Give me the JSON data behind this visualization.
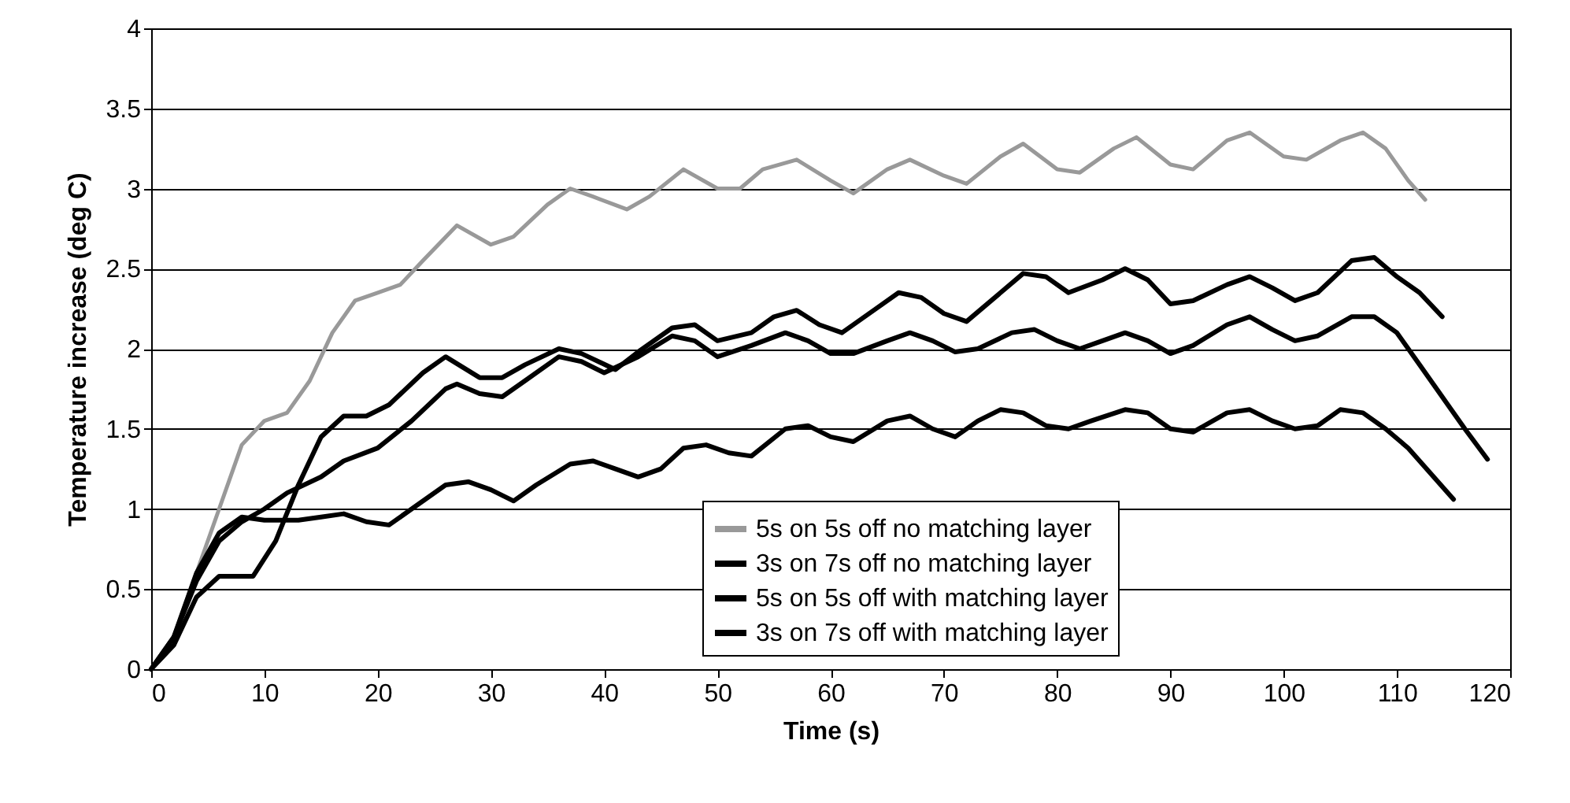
{
  "chart_data": {
    "type": "line",
    "xlabel": "Time (s)",
    "ylabel": "Temperature increase (deg C)",
    "xlim": [
      0,
      120
    ],
    "ylim": [
      0,
      4
    ],
    "xticks": [
      0,
      10,
      20,
      30,
      40,
      50,
      60,
      70,
      80,
      90,
      100,
      110,
      120
    ],
    "yticks": [
      0,
      0.5,
      1,
      1.5,
      2,
      2.5,
      3,
      3.5,
      4
    ],
    "grid": "y",
    "legend": "bottom right",
    "line_style": "solid",
    "marker": "none",
    "series": [
      {
        "name": "5s on 5s off no matching layer",
        "color": "#999999",
        "x": [
          0,
          2,
          4,
          6,
          8,
          10,
          12,
          14,
          16,
          18,
          20,
          22,
          24,
          27,
          30,
          32,
          35,
          37,
          39,
          42,
          44,
          47,
          50,
          52,
          54,
          57,
          60,
          62,
          65,
          67,
          70,
          72,
          75,
          77,
          80,
          82,
          85,
          87,
          90,
          92,
          95,
          97,
          100,
          102,
          105,
          107,
          109,
          111,
          112.5
        ],
        "values": [
          0,
          0.2,
          0.6,
          1.0,
          1.4,
          1.55,
          1.6,
          1.8,
          2.1,
          2.3,
          2.35,
          2.4,
          2.55,
          2.77,
          2.65,
          2.7,
          2.9,
          3.0,
          2.95,
          2.87,
          2.95,
          3.12,
          3.0,
          3.0,
          3.12,
          3.18,
          3.05,
          2.97,
          3.12,
          3.18,
          3.08,
          3.03,
          3.2,
          3.28,
          3.12,
          3.1,
          3.25,
          3.32,
          3.15,
          3.12,
          3.3,
          3.35,
          3.2,
          3.18,
          3.3,
          3.35,
          3.25,
          3.05,
          2.93
        ]
      },
      {
        "name": "3s on 7s off no matching layer",
        "color": "#000000",
        "x": [
          0,
          2,
          4,
          6,
          9,
          11,
          13,
          15,
          17,
          19,
          21,
          24,
          26,
          29,
          31,
          33,
          36,
          38,
          41,
          43,
          46,
          48,
          50,
          53,
          55,
          57,
          59,
          61,
          64,
          66,
          68,
          70,
          72,
          75,
          77,
          79,
          81,
          84,
          86,
          88,
          90,
          92,
          95,
          97,
          99,
          101,
          103,
          106,
          108,
          110,
          112,
          114
        ],
        "values": [
          0,
          0.15,
          0.45,
          0.58,
          0.58,
          0.8,
          1.15,
          1.45,
          1.58,
          1.58,
          1.65,
          1.85,
          1.95,
          1.82,
          1.82,
          1.9,
          2.0,
          1.97,
          1.87,
          1.98,
          2.13,
          2.15,
          2.05,
          2.1,
          2.2,
          2.24,
          2.15,
          2.1,
          2.25,
          2.35,
          2.32,
          2.22,
          2.17,
          2.35,
          2.47,
          2.45,
          2.35,
          2.43,
          2.5,
          2.43,
          2.28,
          2.3,
          2.4,
          2.45,
          2.38,
          2.3,
          2.35,
          2.55,
          2.57,
          2.45,
          2.35,
          2.2
        ]
      },
      {
        "name": "5s on 5s off with matching layer",
        "color": "#000000",
        "x": [
          0,
          2,
          4,
          6,
          8,
          10,
          12,
          15,
          17,
          20,
          23,
          26,
          27,
          29,
          31,
          33,
          36,
          38,
          40,
          43,
          46,
          48,
          50,
          53,
          56,
          58,
          60,
          62,
          65,
          67,
          69,
          71,
          73,
          76,
          78,
          80,
          82,
          84,
          86,
          88,
          90,
          92,
          95,
          97,
          99,
          101,
          103,
          106,
          108,
          110,
          112,
          114,
          116,
          118
        ],
        "values": [
          0,
          0.2,
          0.55,
          0.8,
          0.92,
          1.0,
          1.1,
          1.2,
          1.3,
          1.38,
          1.55,
          1.75,
          1.78,
          1.72,
          1.7,
          1.8,
          1.95,
          1.92,
          1.85,
          1.95,
          2.08,
          2.05,
          1.95,
          2.02,
          2.1,
          2.05,
          1.97,
          1.97,
          2.05,
          2.1,
          2.05,
          1.98,
          2.0,
          2.1,
          2.12,
          2.05,
          2.0,
          2.05,
          2.1,
          2.05,
          1.97,
          2.02,
          2.15,
          2.2,
          2.12,
          2.05,
          2.08,
          2.2,
          2.2,
          2.1,
          1.9,
          1.7,
          1.5,
          1.31
        ]
      },
      {
        "name": "3s on 7s off with matching layer",
        "color": "#000000",
        "x": [
          0,
          2,
          4,
          6,
          8,
          10,
          13,
          15,
          17,
          19,
          21,
          23,
          26,
          28,
          30,
          32,
          34,
          37,
          39,
          41,
          43,
          45,
          47,
          49,
          51,
          53,
          56,
          58,
          60,
          62,
          65,
          67,
          69,
          71,
          73,
          75,
          77,
          79,
          81,
          83,
          86,
          88,
          90,
          92,
          95,
          97,
          99,
          101,
          103,
          105,
          107,
          109,
          111,
          113,
          115
        ],
        "values": [
          0,
          0.2,
          0.6,
          0.85,
          0.95,
          0.93,
          0.93,
          0.95,
          0.97,
          0.92,
          0.9,
          1.0,
          1.15,
          1.17,
          1.12,
          1.05,
          1.15,
          1.28,
          1.3,
          1.25,
          1.2,
          1.25,
          1.38,
          1.4,
          1.35,
          1.33,
          1.5,
          1.52,
          1.45,
          1.42,
          1.55,
          1.58,
          1.5,
          1.45,
          1.55,
          1.62,
          1.6,
          1.52,
          1.5,
          1.55,
          1.62,
          1.6,
          1.5,
          1.48,
          1.6,
          1.62,
          1.55,
          1.5,
          1.52,
          1.62,
          1.6,
          1.5,
          1.38,
          1.22,
          1.06
        ]
      }
    ]
  }
}
